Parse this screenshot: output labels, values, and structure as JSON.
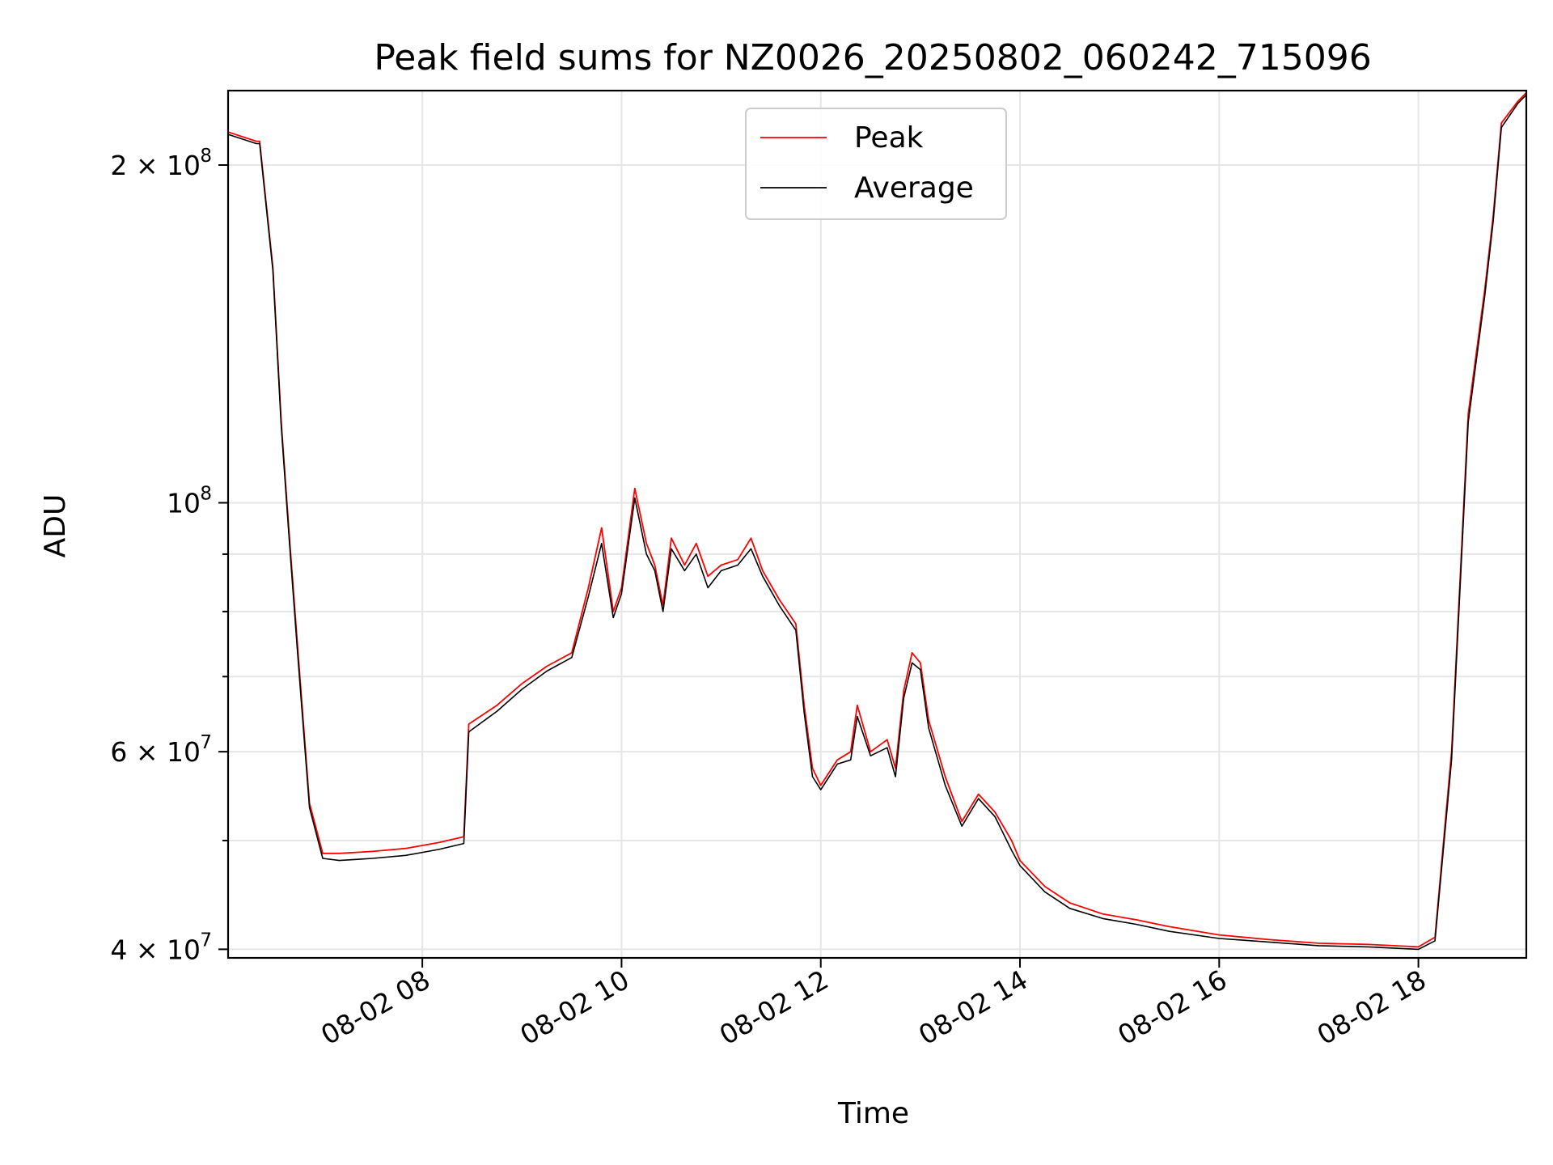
{
  "chart_data": {
    "type": "line",
    "title": "Peak field sums for NZ0026_20250802_060242_715096",
    "xlabel": "Time",
    "ylabel": "ADU",
    "x_axis_type": "time",
    "xlim": [
      "2025-08-02 06:03",
      "2025-08-02 19:05"
    ],
    "xticks": [
      {
        "t": "2025-08-02 08:00",
        "label": "08-02 08"
      },
      {
        "t": "2025-08-02 10:00",
        "label": "08-02 10"
      },
      {
        "t": "2025-08-02 12:00",
        "label": "08-02 12"
      },
      {
        "t": "2025-08-02 14:00",
        "label": "08-02 14"
      },
      {
        "t": "2025-08-02 16:00",
        "label": "08-02 16"
      },
      {
        "t": "2025-08-02 18:00",
        "label": "08-02 18"
      }
    ],
    "yscale": "log",
    "ylim": [
      39300000,
      233000000
    ],
    "yticks_major": [
      {
        "v": 40000000,
        "base": "4 × 10",
        "exp": "7"
      },
      {
        "v": 60000000,
        "base": "6 × 10",
        "exp": "7"
      },
      {
        "v": 100000000,
        "base": "10",
        "exp": "8"
      },
      {
        "v": 200000000,
        "base": "2 × 10",
        "exp": "8"
      }
    ],
    "yticks_minor": [
      50000000,
      70000000,
      80000000,
      90000000
    ],
    "grid": true,
    "legend_position": "upper center",
    "series": [
      {
        "name": "Peak",
        "color": "#ff0000",
        "x": [
          "2025-08-02 06:03",
          "2025-08-02 06:20",
          "2025-08-02 06:22",
          "2025-08-02 06:30",
          "2025-08-02 06:35",
          "2025-08-02 06:40",
          "2025-08-02 06:45",
          "2025-08-02 06:52",
          "2025-08-02 07:00",
          "2025-08-02 07:10",
          "2025-08-02 07:20",
          "2025-08-02 07:30",
          "2025-08-02 07:50",
          "2025-08-02 08:10",
          "2025-08-02 08:25",
          "2025-08-02 08:28",
          "2025-08-02 08:45",
          "2025-08-02 09:00",
          "2025-08-02 09:15",
          "2025-08-02 09:30",
          "2025-08-02 09:40",
          "2025-08-02 09:48",
          "2025-08-02 09:55",
          "2025-08-02 10:00",
          "2025-08-02 10:08",
          "2025-08-02 10:15",
          "2025-08-02 10:20",
          "2025-08-02 10:25",
          "2025-08-02 10:30",
          "2025-08-02 10:38",
          "2025-08-02 10:45",
          "2025-08-02 10:52",
          "2025-08-02 11:00",
          "2025-08-02 11:10",
          "2025-08-02 11:18",
          "2025-08-02 11:25",
          "2025-08-02 11:35",
          "2025-08-02 11:45",
          "2025-08-02 11:50",
          "2025-08-02 11:55",
          "2025-08-02 12:00",
          "2025-08-02 12:10",
          "2025-08-02 12:18",
          "2025-08-02 12:22",
          "2025-08-02 12:30",
          "2025-08-02 12:40",
          "2025-08-02 12:45",
          "2025-08-02 12:50",
          "2025-08-02 12:55",
          "2025-08-02 13:00",
          "2025-08-02 13:05",
          "2025-08-02 13:15",
          "2025-08-02 13:25",
          "2025-08-02 13:35",
          "2025-08-02 13:45",
          "2025-08-02 13:55",
          "2025-08-02 14:00",
          "2025-08-02 14:15",
          "2025-08-02 14:30",
          "2025-08-02 14:50",
          "2025-08-02 15:10",
          "2025-08-02 15:30",
          "2025-08-02 16:00",
          "2025-08-02 16:30",
          "2025-08-02 17:00",
          "2025-08-02 17:30",
          "2025-08-02 18:00",
          "2025-08-02 18:10",
          "2025-08-02 18:20",
          "2025-08-02 18:30",
          "2025-08-02 18:40",
          "2025-08-02 18:45",
          "2025-08-02 18:50",
          "2025-08-02 19:00",
          "2025-08-02 19:05"
        ],
        "values": [
          214000000,
          210000000,
          210000000,
          162000000,
          118000000,
          93000000,
          74000000,
          54000000,
          48700000,
          48700000,
          48800000,
          48900000,
          49200000,
          49800000,
          50400000,
          63500000,
          66000000,
          69000000,
          71500000,
          73500000,
          84000000,
          95000000,
          80000000,
          84000000,
          103000000,
          92000000,
          88000000,
          81000000,
          93000000,
          88000000,
          92000000,
          86000000,
          88000000,
          89000000,
          93000000,
          87000000,
          82000000,
          78000000,
          66000000,
          58000000,
          56000000,
          59000000,
          60000000,
          66000000,
          60000000,
          61500000,
          58000000,
          68000000,
          73500000,
          72000000,
          64000000,
          57000000,
          52000000,
          55000000,
          53000000,
          50000000,
          48000000,
          45500000,
          44000000,
          43000000,
          42500000,
          41900000,
          41200000,
          40800000,
          40500000,
          40400000,
          40200000,
          41000000,
          60000000,
          120000000,
          155000000,
          180000000,
          218000000,
          228000000,
          232000000
        ]
      },
      {
        "name": "Average",
        "color": "#000000",
        "x": [
          "2025-08-02 06:03",
          "2025-08-02 06:20",
          "2025-08-02 06:22",
          "2025-08-02 06:30",
          "2025-08-02 06:35",
          "2025-08-02 06:40",
          "2025-08-02 06:45",
          "2025-08-02 06:52",
          "2025-08-02 07:00",
          "2025-08-02 07:10",
          "2025-08-02 07:20",
          "2025-08-02 07:30",
          "2025-08-02 07:50",
          "2025-08-02 08:10",
          "2025-08-02 08:25",
          "2025-08-02 08:28",
          "2025-08-02 08:45",
          "2025-08-02 09:00",
          "2025-08-02 09:15",
          "2025-08-02 09:30",
          "2025-08-02 09:40",
          "2025-08-02 09:48",
          "2025-08-02 09:55",
          "2025-08-02 10:00",
          "2025-08-02 10:08",
          "2025-08-02 10:15",
          "2025-08-02 10:20",
          "2025-08-02 10:25",
          "2025-08-02 10:30",
          "2025-08-02 10:38",
          "2025-08-02 10:45",
          "2025-08-02 10:52",
          "2025-08-02 11:00",
          "2025-08-02 11:10",
          "2025-08-02 11:18",
          "2025-08-02 11:25",
          "2025-08-02 11:35",
          "2025-08-02 11:45",
          "2025-08-02 11:50",
          "2025-08-02 11:55",
          "2025-08-02 12:00",
          "2025-08-02 12:10",
          "2025-08-02 12:18",
          "2025-08-02 12:22",
          "2025-08-02 12:30",
          "2025-08-02 12:40",
          "2025-08-02 12:45",
          "2025-08-02 12:50",
          "2025-08-02 12:55",
          "2025-08-02 13:00",
          "2025-08-02 13:05",
          "2025-08-02 13:15",
          "2025-08-02 13:25",
          "2025-08-02 13:35",
          "2025-08-02 13:45",
          "2025-08-02 13:55",
          "2025-08-02 14:00",
          "2025-08-02 14:15",
          "2025-08-02 14:30",
          "2025-08-02 14:50",
          "2025-08-02 15:10",
          "2025-08-02 15:30",
          "2025-08-02 16:00",
          "2025-08-02 16:30",
          "2025-08-02 17:00",
          "2025-08-02 17:30",
          "2025-08-02 18:00",
          "2025-08-02 18:10",
          "2025-08-02 18:20",
          "2025-08-02 18:30",
          "2025-08-02 18:40",
          "2025-08-02 18:45",
          "2025-08-02 18:50",
          "2025-08-02 19:00",
          "2025-08-02 19:05"
        ],
        "values": [
          213000000,
          209000000,
          209000000,
          161000000,
          117000000,
          92000000,
          73000000,
          53500000,
          48200000,
          48000000,
          48100000,
          48200000,
          48500000,
          49100000,
          49700000,
          62500000,
          65200000,
          68200000,
          70800000,
          72800000,
          82500000,
          92000000,
          79000000,
          83000000,
          101000000,
          90000000,
          87000000,
          80000000,
          91000000,
          87000000,
          90000000,
          84000000,
          87000000,
          88000000,
          91000000,
          86000000,
          81000000,
          77000000,
          65000000,
          57000000,
          55500000,
          58500000,
          59000000,
          64500000,
          59500000,
          60500000,
          57000000,
          67000000,
          72000000,
          71000000,
          63000000,
          56000000,
          51500000,
          54500000,
          52500000,
          49000000,
          47500000,
          45000000,
          43500000,
          42600000,
          42100000,
          41500000,
          40900000,
          40600000,
          40300000,
          40200000,
          40000000,
          40700000,
          59000000,
          118000000,
          153000000,
          178000000,
          216000000,
          227000000,
          231000000
        ]
      }
    ]
  }
}
